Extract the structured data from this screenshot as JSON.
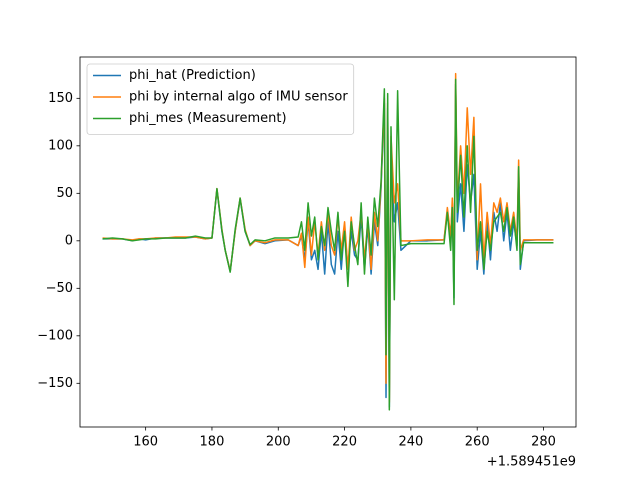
{
  "chart_data": {
    "type": "line",
    "x_offset_label": "+1.589451e9",
    "x": [
      147,
      150,
      153,
      156,
      158,
      160,
      163,
      166,
      169,
      172,
      175,
      178,
      180,
      181.5,
      183,
      184,
      185.5,
      187,
      188.5,
      190,
      191.5,
      193,
      196,
      199,
      203,
      206,
      207,
      208,
      209,
      210,
      211,
      212,
      213,
      214,
      215,
      216,
      217,
      218,
      219,
      220,
      221,
      222,
      223,
      224,
      225,
      226,
      227,
      228,
      229,
      230,
      231,
      232,
      232.5,
      233,
      233.5,
      234,
      235,
      236,
      237,
      240,
      245,
      250,
      251,
      252,
      252.5,
      253,
      253.5,
      254,
      255,
      256,
      257,
      258,
      259,
      260,
      261,
      262,
      263,
      264,
      265,
      266,
      267,
      268,
      269,
      270,
      271,
      272,
      272.5,
      273,
      274,
      278,
      283
    ],
    "series": [
      {
        "name": "phi_hat (Prediction)",
        "color": "#1f77b4",
        "values": [
          2,
          2,
          2,
          0,
          2,
          1,
          3,
          3,
          3,
          3,
          4,
          2,
          3,
          54,
          10,
          -10,
          -32,
          10,
          44,
          10,
          -5,
          0,
          -3,
          0,
          1,
          -5,
          5,
          -20,
          20,
          -20,
          -10,
          -30,
          10,
          -35,
          20,
          -25,
          -35,
          10,
          -30,
          15,
          -30,
          10,
          -15,
          -20,
          25,
          -30,
          15,
          -35,
          20,
          -5,
          55,
          145,
          -165,
          140,
          -175,
          100,
          20,
          40,
          -10,
          0,
          0,
          1,
          30,
          0,
          40,
          -60,
          165,
          20,
          60,
          10,
          80,
          40,
          70,
          -30,
          10,
          -35,
          20,
          -20,
          30,
          10,
          40,
          0,
          30,
          -10,
          20,
          -5,
          75,
          -30,
          0,
          1,
          1
        ]
      },
      {
        "name": "phi by internal algo of IMU sensor",
        "color": "#ff7f0e",
        "values": [
          3,
          2,
          2,
          1,
          2,
          2,
          3,
          3,
          4,
          4,
          4,
          2,
          3,
          55,
          12,
          -10,
          -32,
          10,
          45,
          12,
          -5,
          0,
          -2,
          1,
          1,
          -5,
          8,
          -28,
          25,
          -15,
          20,
          -15,
          20,
          -10,
          30,
          -5,
          -15,
          25,
          -10,
          20,
          -30,
          25,
          -10,
          0,
          30,
          -20,
          20,
          -30,
          30,
          0,
          60,
          150,
          -150,
          145,
          -170,
          110,
          40,
          60,
          0,
          0,
          1,
          1,
          35,
          5,
          45,
          -30,
          176,
          40,
          100,
          50,
          140,
          70,
          130,
          -20,
          60,
          -20,
          30,
          -5,
          40,
          30,
          45,
          20,
          40,
          10,
          30,
          0,
          85,
          -10,
          1,
          1,
          1
        ]
      },
      {
        "name": "phi_mes (Measurement)",
        "color": "#2ca02c",
        "values": [
          2,
          3,
          2,
          0,
          1,
          2,
          2,
          3,
          3,
          3,
          5,
          3,
          3,
          55,
          11,
          -10,
          -33,
          12,
          45,
          10,
          -4,
          1,
          0,
          3,
          3,
          4,
          20,
          -10,
          40,
          5,
          25,
          -20,
          15,
          -5,
          35,
          10,
          -10,
          30,
          -20,
          10,
          -48,
          20,
          -5,
          -25,
          40,
          -35,
          25,
          -15,
          45,
          15,
          62,
          160,
          -120,
          155,
          -178,
          120,
          -62,
          158,
          -5,
          -3,
          -3,
          -3,
          30,
          -10,
          35,
          -67,
          170,
          30,
          90,
          25,
          100,
          30,
          110,
          -10,
          20,
          -30,
          10,
          -10,
          20,
          25,
          30,
          10,
          35,
          5,
          25,
          -10,
          78,
          -25,
          -2,
          -2,
          -2
        ]
      }
    ],
    "xlim": [
      140.2,
      289.8
    ],
    "xticks": [
      160,
      180,
      200,
      220,
      240,
      260,
      280
    ],
    "ylim": [
      -196,
      193.5
    ],
    "yticks": [
      {
        "value": -150,
        "label": "−150"
      },
      {
        "value": -100,
        "label": "−100"
      },
      {
        "value": -50,
        "label": "−50"
      },
      0,
      50,
      100,
      150
    ],
    "legend": "upper left",
    "grid": false
  }
}
